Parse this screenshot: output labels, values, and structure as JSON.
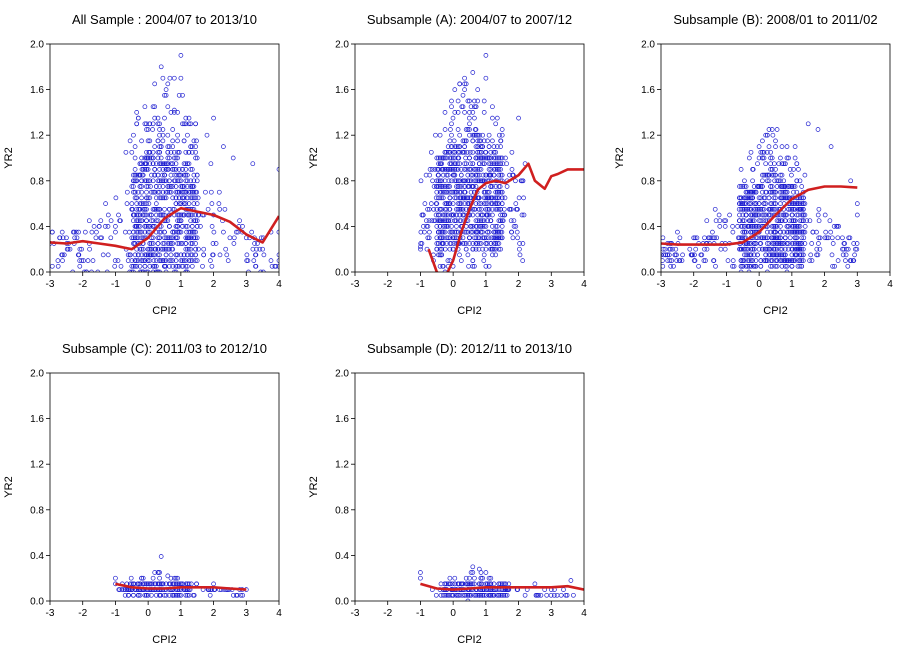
{
  "figure": {
    "point_color": "#1f1fd0",
    "fit_color": "#d01f1f",
    "axis_color": "#000000"
  },
  "chart_data": [
    {
      "type": "scatter",
      "title": "All Sample : 2004/07 to 2013/10",
      "xlabel": "CPI2",
      "ylabel": "YR2",
      "xlim": [
        -3,
        4
      ],
      "ylim": [
        0,
        2.0
      ],
      "xticks": [
        "-3",
        "-2",
        "-1",
        "0",
        "1",
        "2",
        "3",
        "4"
      ],
      "yticks": [
        "0.0",
        "0.4",
        "0.8",
        "1.2",
        "1.6",
        "2.0"
      ],
      "grid": false,
      "scatter_cloud": {
        "x_range": [
          -3,
          4
        ],
        "y_range": [
          0,
          1.9
        ],
        "x_center": 0.5,
        "dense_band": [
          0,
          1.2
        ]
      },
      "points": [
        [
          1.0,
          1.9
        ],
        [
          1.0,
          1.7
        ],
        [
          0.6,
          1.45
        ],
        [
          0.8,
          1.42
        ],
        [
          2.0,
          1.35
        ],
        [
          1.3,
          1.3
        ],
        [
          2.6,
          1.0
        ],
        [
          3.2,
          0.95
        ],
        [
          4.0,
          0.9
        ],
        [
          -3.0,
          0.25
        ],
        [
          -2.6,
          0.3
        ],
        [
          -2.2,
          0.35
        ],
        [
          -1.8,
          0.45
        ],
        [
          3.0,
          0.3
        ],
        [
          3.5,
          0.2
        ],
        [
          4.0,
          0.1
        ],
        [
          1.8,
          1.2
        ],
        [
          2.3,
          1.1
        ],
        [
          1.5,
          1.0
        ],
        [
          0.2,
          1.35
        ]
      ],
      "fit_line": {
        "x": [
          -3.0,
          -2.5,
          -2.0,
          -1.5,
          -1.0,
          -0.5,
          0.0,
          0.5,
          1.0,
          1.5,
          2.0,
          2.5,
          3.0,
          3.5,
          4.0
        ],
        "y": [
          0.26,
          0.25,
          0.27,
          0.25,
          0.23,
          0.2,
          0.3,
          0.47,
          0.56,
          0.53,
          0.5,
          0.44,
          0.33,
          0.26,
          0.49
        ]
      }
    },
    {
      "type": "scatter",
      "title": "Subsample (A): 2004/07 to 2007/12",
      "xlabel": "CPI2",
      "ylabel": "YR2",
      "xlim": [
        -3,
        4
      ],
      "ylim": [
        0,
        2.0
      ],
      "xticks": [
        "-3",
        "-2",
        "-1",
        "0",
        "1",
        "2",
        "3",
        "4"
      ],
      "yticks": [
        "0.0",
        "0.4",
        "0.8",
        "1.2",
        "1.6",
        "2.0"
      ],
      "grid": false,
      "scatter_cloud": {
        "x_range": [
          -1,
          2.2
        ],
        "y_range": [
          0,
          1.9
        ],
        "x_center": 0.5,
        "dense_band": [
          0.2,
          1.3
        ]
      },
      "points": [
        [
          1.0,
          1.9
        ],
        [
          1.0,
          1.7
        ],
        [
          0.7,
          1.45
        ],
        [
          2.0,
          1.35
        ],
        [
          1.3,
          1.3
        ],
        [
          -0.8,
          0.2
        ],
        [
          -0.6,
          0.1
        ],
        [
          -1.0,
          0.22
        ],
        [
          2.2,
          0.95
        ],
        [
          1.6,
          1.0
        ],
        [
          0.9,
          1.2
        ],
        [
          1.8,
          0.9
        ]
      ],
      "fit_line": {
        "x": [
          -0.75,
          -0.5,
          -0.25,
          0.0,
          0.25,
          0.5,
          0.75,
          1.0,
          1.3,
          1.6,
          2.0,
          2.3,
          2.5,
          2.8,
          3.0,
          3.2,
          3.5,
          4.0
        ],
        "y": [
          0.2,
          0.0,
          -0.05,
          0.1,
          0.35,
          0.55,
          0.72,
          0.78,
          0.8,
          0.78,
          0.85,
          0.95,
          0.8,
          0.73,
          0.84,
          0.86,
          0.9,
          0.9
        ]
      }
    },
    {
      "type": "scatter",
      "title": "Subsample (B): 2008/01 to 2011/02",
      "xlabel": "CPI2",
      "ylabel": "YR2",
      "xlim": [
        -3,
        4
      ],
      "ylim": [
        0,
        2.0
      ],
      "xticks": [
        "-3",
        "-2",
        "-1",
        "0",
        "1",
        "2",
        "3",
        "4"
      ],
      "yticks": [
        "0.0",
        "0.4",
        "0.8",
        "1.2",
        "1.6",
        "2.0"
      ],
      "grid": false,
      "scatter_cloud": {
        "x_range": [
          -3,
          3
        ],
        "y_range": [
          0,
          1.3
        ],
        "x_center": 0.4,
        "dense_band": [
          0.05,
          0.9
        ]
      },
      "points": [
        [
          1.5,
          1.3
        ],
        [
          1.8,
          1.25
        ],
        [
          2.2,
          1.1
        ],
        [
          -2.5,
          0.35
        ],
        [
          -2.8,
          0.25
        ],
        [
          -2.0,
          0.3
        ],
        [
          -1.6,
          0.45
        ],
        [
          3.0,
          0.5
        ],
        [
          3.0,
          0.6
        ],
        [
          2.8,
          0.8
        ],
        [
          1.1,
          1.1
        ]
      ],
      "fit_line": {
        "x": [
          -3.0,
          -2.5,
          -2.0,
          -1.5,
          -1.0,
          -0.5,
          0.0,
          0.5,
          1.0,
          1.5,
          2.0,
          2.5,
          3.0
        ],
        "y": [
          0.25,
          0.24,
          0.24,
          0.24,
          0.24,
          0.26,
          0.35,
          0.5,
          0.64,
          0.72,
          0.75,
          0.75,
          0.74
        ]
      }
    },
    {
      "type": "scatter",
      "title": "Subsample (C): 2011/03 to 2012/10",
      "xlabel": "CPI2",
      "ylabel": "YR2",
      "xlim": [
        -3,
        4
      ],
      "ylim": [
        0,
        2.0
      ],
      "xticks": [
        "-3",
        "-2",
        "-1",
        "0",
        "1",
        "2",
        "3",
        "4"
      ],
      "yticks": [
        "0.0",
        "0.4",
        "0.8",
        "1.2",
        "1.6",
        "2.0"
      ],
      "grid": false,
      "scatter_cloud": {
        "x_range": [
          -1,
          3
        ],
        "y_range": [
          0.03,
          0.26
        ],
        "x_center": 0.3,
        "dense_band": [
          0.06,
          0.18
        ]
      },
      "points": [
        [
          0.4,
          0.39
        ],
        [
          -1.0,
          0.2
        ],
        [
          0.2,
          0.25
        ],
        [
          0.6,
          0.22
        ],
        [
          1.2,
          0.15
        ],
        [
          2.0,
          0.15
        ],
        [
          3.0,
          0.1
        ]
      ],
      "fit_line": {
        "x": [
          -1.0,
          -0.5,
          0.0,
          0.5,
          1.0,
          1.5,
          2.0,
          2.5,
          3.0
        ],
        "y": [
          0.15,
          0.12,
          0.11,
          0.11,
          0.12,
          0.12,
          0.12,
          0.11,
          0.1
        ]
      }
    },
    {
      "type": "scatter",
      "title": "Subsample (D): 2012/11 to 2013/10",
      "xlabel": "CPI2",
      "ylabel": "YR2",
      "xlim": [
        -3,
        4
      ],
      "ylim": [
        0,
        2.0
      ],
      "xticks": [
        "-3",
        "-2",
        "-1",
        "0",
        "1",
        "2",
        "3",
        "4"
      ],
      "yticks": [
        "0.0",
        "0.4",
        "0.8",
        "1.2",
        "1.6",
        "2.0"
      ],
      "grid": false,
      "scatter_cloud": {
        "x_range": [
          -1,
          3.7
        ],
        "y_range": [
          0.02,
          0.27
        ],
        "x_center": 0.7,
        "dense_band": [
          0.04,
          0.2
        ]
      },
      "points": [
        [
          0.6,
          0.3
        ],
        [
          0.8,
          0.28
        ],
        [
          -1.0,
          0.25
        ],
        [
          -1.0,
          0.2
        ],
        [
          3.6,
          0.18
        ],
        [
          2.5,
          0.15
        ],
        [
          3.0,
          0.1
        ]
      ],
      "fit_line": {
        "x": [
          -1.0,
          -0.5,
          0.0,
          0.5,
          1.0,
          1.5,
          2.0,
          2.5,
          3.0,
          3.5,
          4.0
        ],
        "y": [
          0.15,
          0.11,
          0.1,
          0.11,
          0.12,
          0.12,
          0.12,
          0.12,
          0.12,
          0.13,
          0.1
        ]
      }
    }
  ]
}
